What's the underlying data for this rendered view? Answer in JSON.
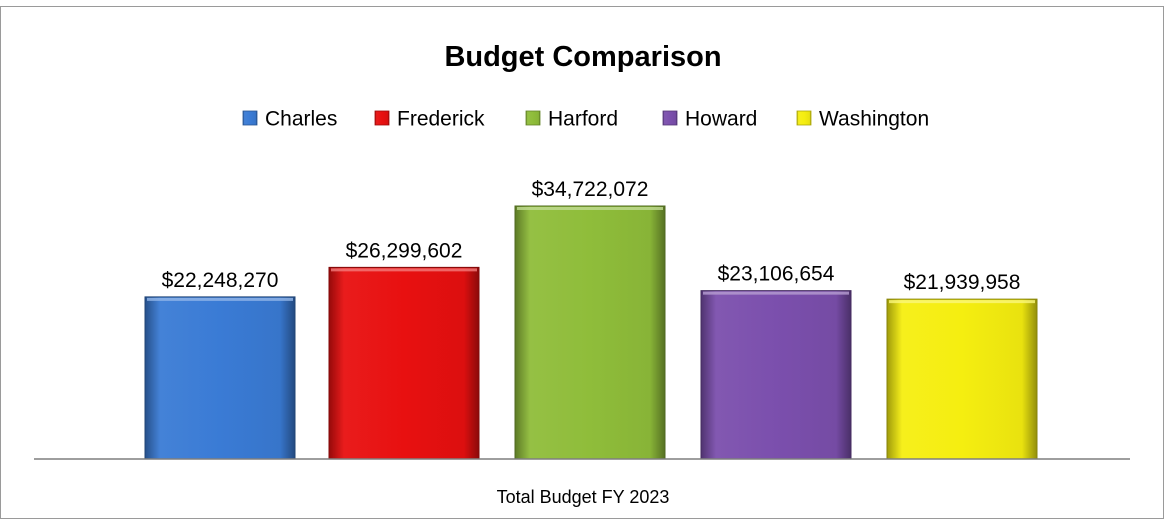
{
  "chart_data": {
    "type": "bar",
    "title": "Budget Comparison",
    "xlabel": "Total Budget FY 2023",
    "ylabel": "",
    "ylim": [
      0,
      40000000
    ],
    "grid": false,
    "legend_position": "top",
    "categories": [
      "Total Budget FY 2023"
    ],
    "series": [
      {
        "name": "Charles",
        "values": [
          22248270
        ],
        "label": "$22,248,270",
        "color": "#3a7bd5"
      },
      {
        "name": "Frederick",
        "values": [
          26299602
        ],
        "label": "$26,299,602",
        "color": "#e81010"
      },
      {
        "name": "Harford",
        "values": [
          34722072
        ],
        "label": "$34,722,072",
        "color": "#8fbd3a"
      },
      {
        "name": "Howard",
        "values": [
          23106654
        ],
        "label": "$23,106,654",
        "color": "#7b4fad"
      },
      {
        "name": "Washington",
        "values": [
          21939958
        ],
        "label": "$21,939,958",
        "color": "#f5ee10"
      }
    ]
  }
}
